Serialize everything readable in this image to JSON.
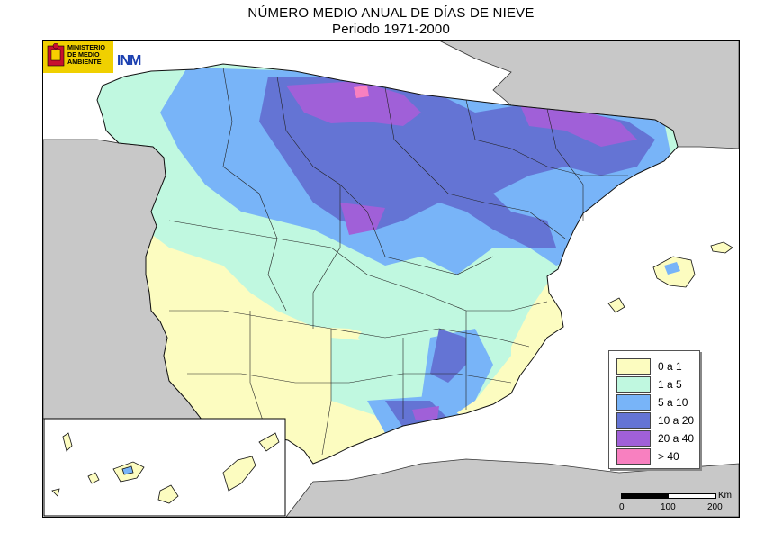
{
  "title": "NÚMERO MEDIO ANUAL DE DÍAS DE NIEVE",
  "subtitle": "Periodo 1971-2000",
  "logo": {
    "ministry_line1": "MINISTERIO",
    "ministry_line2": "DE MEDIO",
    "ministry_line3": "AMBIENTE",
    "agency": "INM",
    "icon": "coat-of-arms"
  },
  "legend": {
    "items": [
      {
        "label": "0 a 1",
        "color": "#fcfcc0"
      },
      {
        "label": "1 a 5",
        "color": "#c0f8e0"
      },
      {
        "label": "5 a 10",
        "color": "#78b4f8"
      },
      {
        "label": "10 a 20",
        "color": "#6474d4"
      },
      {
        "label": "20 a 40",
        "color": "#a060d8"
      },
      {
        "label": "> 40",
        "color": "#f880c0"
      }
    ]
  },
  "scale": {
    "ticks": [
      "0",
      "100",
      "200"
    ],
    "unit": "Km"
  },
  "colors": {
    "land_outside": "#c8c8c8",
    "sea": "#ffffff",
    "border": "#222222"
  }
}
